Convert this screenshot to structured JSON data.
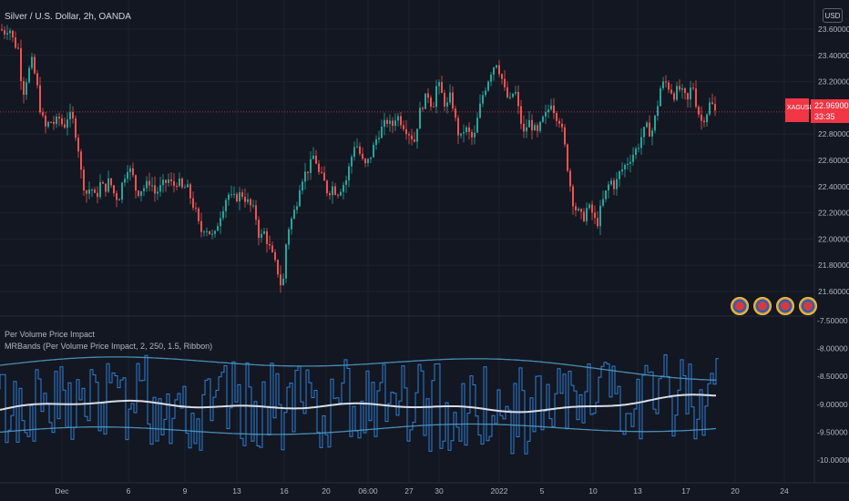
{
  "header": {
    "symbol_line": "Silver / U.S. Dollar, 2h, OANDA",
    "currency_button": "USD"
  },
  "price_scale": {
    "ticks": [
      "23.60000",
      "23.40000",
      "23.20000",
      "22.80000",
      "22.60000",
      "22.40000",
      "22.20000",
      "22.00000",
      "21.80000",
      "21.60000"
    ],
    "tick_values": [
      23.6,
      23.4,
      23.2,
      22.8,
      22.6,
      22.4,
      22.2,
      22.0,
      21.8,
      21.6
    ]
  },
  "last_price": {
    "symbol": "XAGUSD",
    "value": "22.96900",
    "countdown": "33:35",
    "value_num": 22.969,
    "color": "#f23645"
  },
  "indicators": {
    "pane_title": "Per Volume Price Impact",
    "bands_title": "MRBands (Per Volume Price Impact, 2, 250, 1.5, Ribbon)",
    "ticks": [
      "-7.50000",
      "-8.00000",
      "-8.50000",
      "-9.00000",
      "-9.50000",
      "-10.00000"
    ],
    "tick_values": [
      -7.5,
      -8.0,
      -8.5,
      -9.0,
      -9.5,
      -10.0
    ]
  },
  "time_axis": {
    "labels": [
      "Dec",
      "6",
      "9",
      "13",
      "16",
      "20",
      "06:00",
      "27",
      "30",
      "2022",
      "5",
      "10",
      "13",
      "17",
      "20",
      "24"
    ]
  },
  "flags_row": [
    "flag-icon",
    "flag-icon",
    "flag-icon",
    "flag-icon"
  ],
  "colors": {
    "up": "#26a69a",
    "down": "#ef5350",
    "indicator": "#2f7fd4",
    "band": "#4e9ac4",
    "midline": "#d8dde6"
  },
  "chart_data": {
    "type": "candlestick",
    "price_range": [
      21.5,
      23.65
    ],
    "x_points": [
      [
        0,
        23.6
      ],
      [
        5,
        23.58
      ],
      [
        10,
        23.62
      ],
      [
        15,
        23.5
      ],
      [
        20,
        23.45
      ],
      [
        25,
        23.1
      ],
      [
        30,
        23.25
      ],
      [
        35,
        23.35
      ],
      [
        40,
        23.2
      ],
      [
        45,
        22.95
      ],
      [
        50,
        22.85
      ],
      [
        55,
        22.9
      ],
      [
        60,
        22.88
      ],
      [
        65,
        22.92
      ],
      [
        70,
        22.85
      ],
      [
        75,
        22.95
      ],
      [
        80,
        22.9
      ],
      [
        85,
        22.75
      ],
      [
        90,
        22.45
      ],
      [
        95,
        22.35
      ],
      [
        100,
        22.4
      ],
      [
        105,
        22.3
      ],
      [
        110,
        22.42
      ],
      [
        115,
        22.38
      ],
      [
        120,
        22.45
      ],
      [
        125,
        22.35
      ],
      [
        130,
        22.3
      ],
      [
        135,
        22.45
      ],
      [
        140,
        22.55
      ],
      [
        145,
        22.5
      ],
      [
        150,
        22.35
      ],
      [
        155,
        22.38
      ],
      [
        160,
        22.4
      ],
      [
        165,
        22.45
      ],
      [
        170,
        22.35
      ],
      [
        175,
        22.38
      ],
      [
        180,
        22.42
      ],
      [
        185,
        22.45
      ],
      [
        190,
        22.4
      ],
      [
        195,
        22.45
      ],
      [
        200,
        22.38
      ],
      [
        205,
        22.4
      ],
      [
        210,
        22.3
      ],
      [
        215,
        22.2
      ],
      [
        220,
        22.05
      ],
      [
        225,
        22.1
      ],
      [
        230,
        22.05
      ],
      [
        235,
        22.0
      ],
      [
        240,
        22.15
      ],
      [
        245,
        22.25
      ],
      [
        250,
        22.35
      ],
      [
        255,
        22.3
      ],
      [
        260,
        22.32
      ],
      [
        265,
        22.35
      ],
      [
        270,
        22.3
      ],
      [
        275,
        22.25
      ],
      [
        280,
        22.2
      ],
      [
        285,
        22.0
      ],
      [
        290,
        22.05
      ],
      [
        295,
        21.95
      ],
      [
        300,
        21.85
      ],
      [
        305,
        21.75
      ],
      [
        310,
        21.6
      ],
      [
        315,
        22.05
      ],
      [
        320,
        22.15
      ],
      [
        325,
        22.25
      ],
      [
        330,
        22.45
      ],
      [
        335,
        22.5
      ],
      [
        340,
        22.55
      ],
      [
        345,
        22.65
      ],
      [
        350,
        22.5
      ],
      [
        355,
        22.45
      ],
      [
        360,
        22.35
      ],
      [
        365,
        22.4
      ],
      [
        370,
        22.35
      ],
      [
        375,
        22.4
      ],
      [
        380,
        22.45
      ],
      [
        385,
        22.6
      ],
      [
        390,
        22.75
      ],
      [
        395,
        22.65
      ],
      [
        400,
        22.55
      ],
      [
        405,
        22.6
      ],
      [
        410,
        22.7
      ],
      [
        415,
        22.8
      ],
      [
        420,
        22.85
      ],
      [
        425,
        22.9
      ],
      [
        430,
        22.85
      ],
      [
        435,
        22.95
      ],
      [
        440,
        22.9
      ],
      [
        445,
        22.85
      ],
      [
        450,
        22.8
      ],
      [
        455,
        22.75
      ],
      [
        460,
        22.95
      ],
      [
        465,
        23.05
      ],
      [
        470,
        23.1
      ],
      [
        475,
        23.0
      ],
      [
        480,
        23.2
      ],
      [
        485,
        23.1
      ],
      [
        490,
        23.0
      ],
      [
        495,
        23.1
      ],
      [
        500,
        22.9
      ],
      [
        505,
        22.75
      ],
      [
        510,
        22.85
      ],
      [
        515,
        22.8
      ],
      [
        520,
        22.75
      ],
      [
        525,
        22.95
      ],
      [
        530,
        23.1
      ],
      [
        535,
        23.2
      ],
      [
        540,
        23.3
      ],
      [
        545,
        23.35
      ],
      [
        550,
        23.25
      ],
      [
        555,
        23.1
      ],
      [
        560,
        23.05
      ],
      [
        565,
        23.15
      ],
      [
        570,
        22.95
      ],
      [
        575,
        22.8
      ],
      [
        580,
        22.9
      ],
      [
        585,
        22.85
      ],
      [
        590,
        22.8
      ],
      [
        595,
        22.9
      ],
      [
        600,
        22.95
      ],
      [
        605,
        23.05
      ],
      [
        610,
        22.95
      ],
      [
        615,
        22.9
      ],
      [
        620,
        22.7
      ],
      [
        625,
        22.45
      ],
      [
        630,
        22.25
      ],
      [
        635,
        22.2
      ],
      [
        640,
        22.15
      ],
      [
        645,
        22.25
      ],
      [
        650,
        22.2
      ],
      [
        655,
        22.1
      ],
      [
        660,
        22.25
      ],
      [
        665,
        22.35
      ],
      [
        670,
        22.45
      ],
      [
        675,
        22.4
      ],
      [
        680,
        22.5
      ],
      [
        685,
        22.55
      ],
      [
        690,
        22.6
      ],
      [
        695,
        22.65
      ],
      [
        700,
        22.7
      ],
      [
        705,
        22.8
      ],
      [
        710,
        22.85
      ],
      [
        715,
        22.8
      ],
      [
        720,
        22.95
      ],
      [
        725,
        23.15
      ],
      [
        730,
        23.2
      ],
      [
        735,
        23.15
      ],
      [
        740,
        23.1
      ],
      [
        745,
        23.15
      ],
      [
        750,
        23.1
      ],
      [
        755,
        23.05
      ],
      [
        760,
        23.2
      ],
      [
        765,
        23.0
      ],
      [
        770,
        22.9
      ],
      [
        775,
        22.95
      ],
      [
        780,
        23.05
      ],
      [
        785,
        22.97
      ]
    ],
    "indicator": {
      "mid_start": -9.1,
      "mid_end": -8.95,
      "upper_start": -8.3,
      "upper_end": -8.45,
      "lower_start": -9.5,
      "lower_end": -9.4
    }
  }
}
